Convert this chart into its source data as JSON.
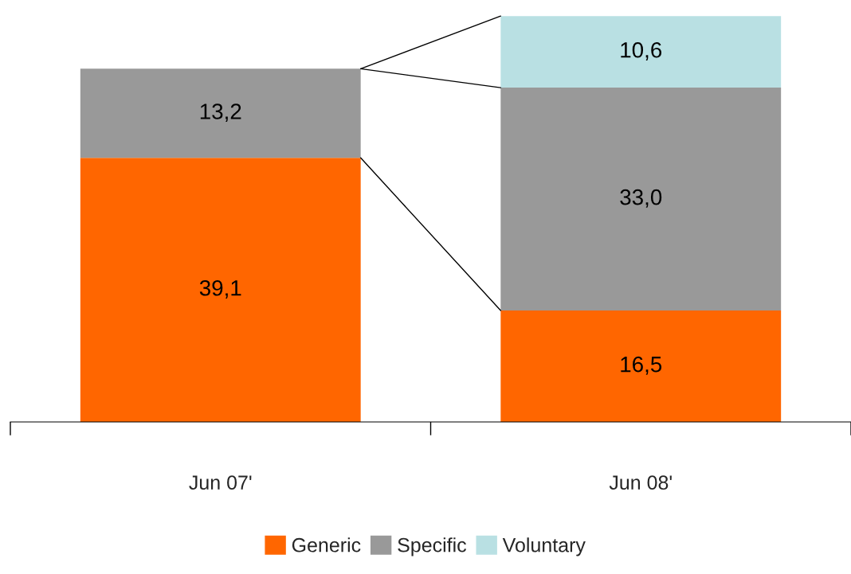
{
  "chart_data": {
    "type": "bar",
    "stacked": true,
    "legend": "bottom",
    "grid": false,
    "categories": [
      "Jun 07'",
      "Jun 08'"
    ],
    "series": [
      {
        "name": "Generic",
        "color": "#ff6600",
        "values": [
          39.1,
          16.5
        ],
        "value_labels": [
          "39,1",
          "16,5"
        ]
      },
      {
        "name": "Specific",
        "color": "#999999",
        "values": [
          13.2,
          33.0
        ],
        "value_labels": [
          "13,2",
          "33,0"
        ]
      },
      {
        "name": "Voluntary",
        "color": "#b9e0e3",
        "values": [
          null,
          10.6
        ],
        "value_labels": [
          null,
          "10,6"
        ]
      }
    ]
  }
}
